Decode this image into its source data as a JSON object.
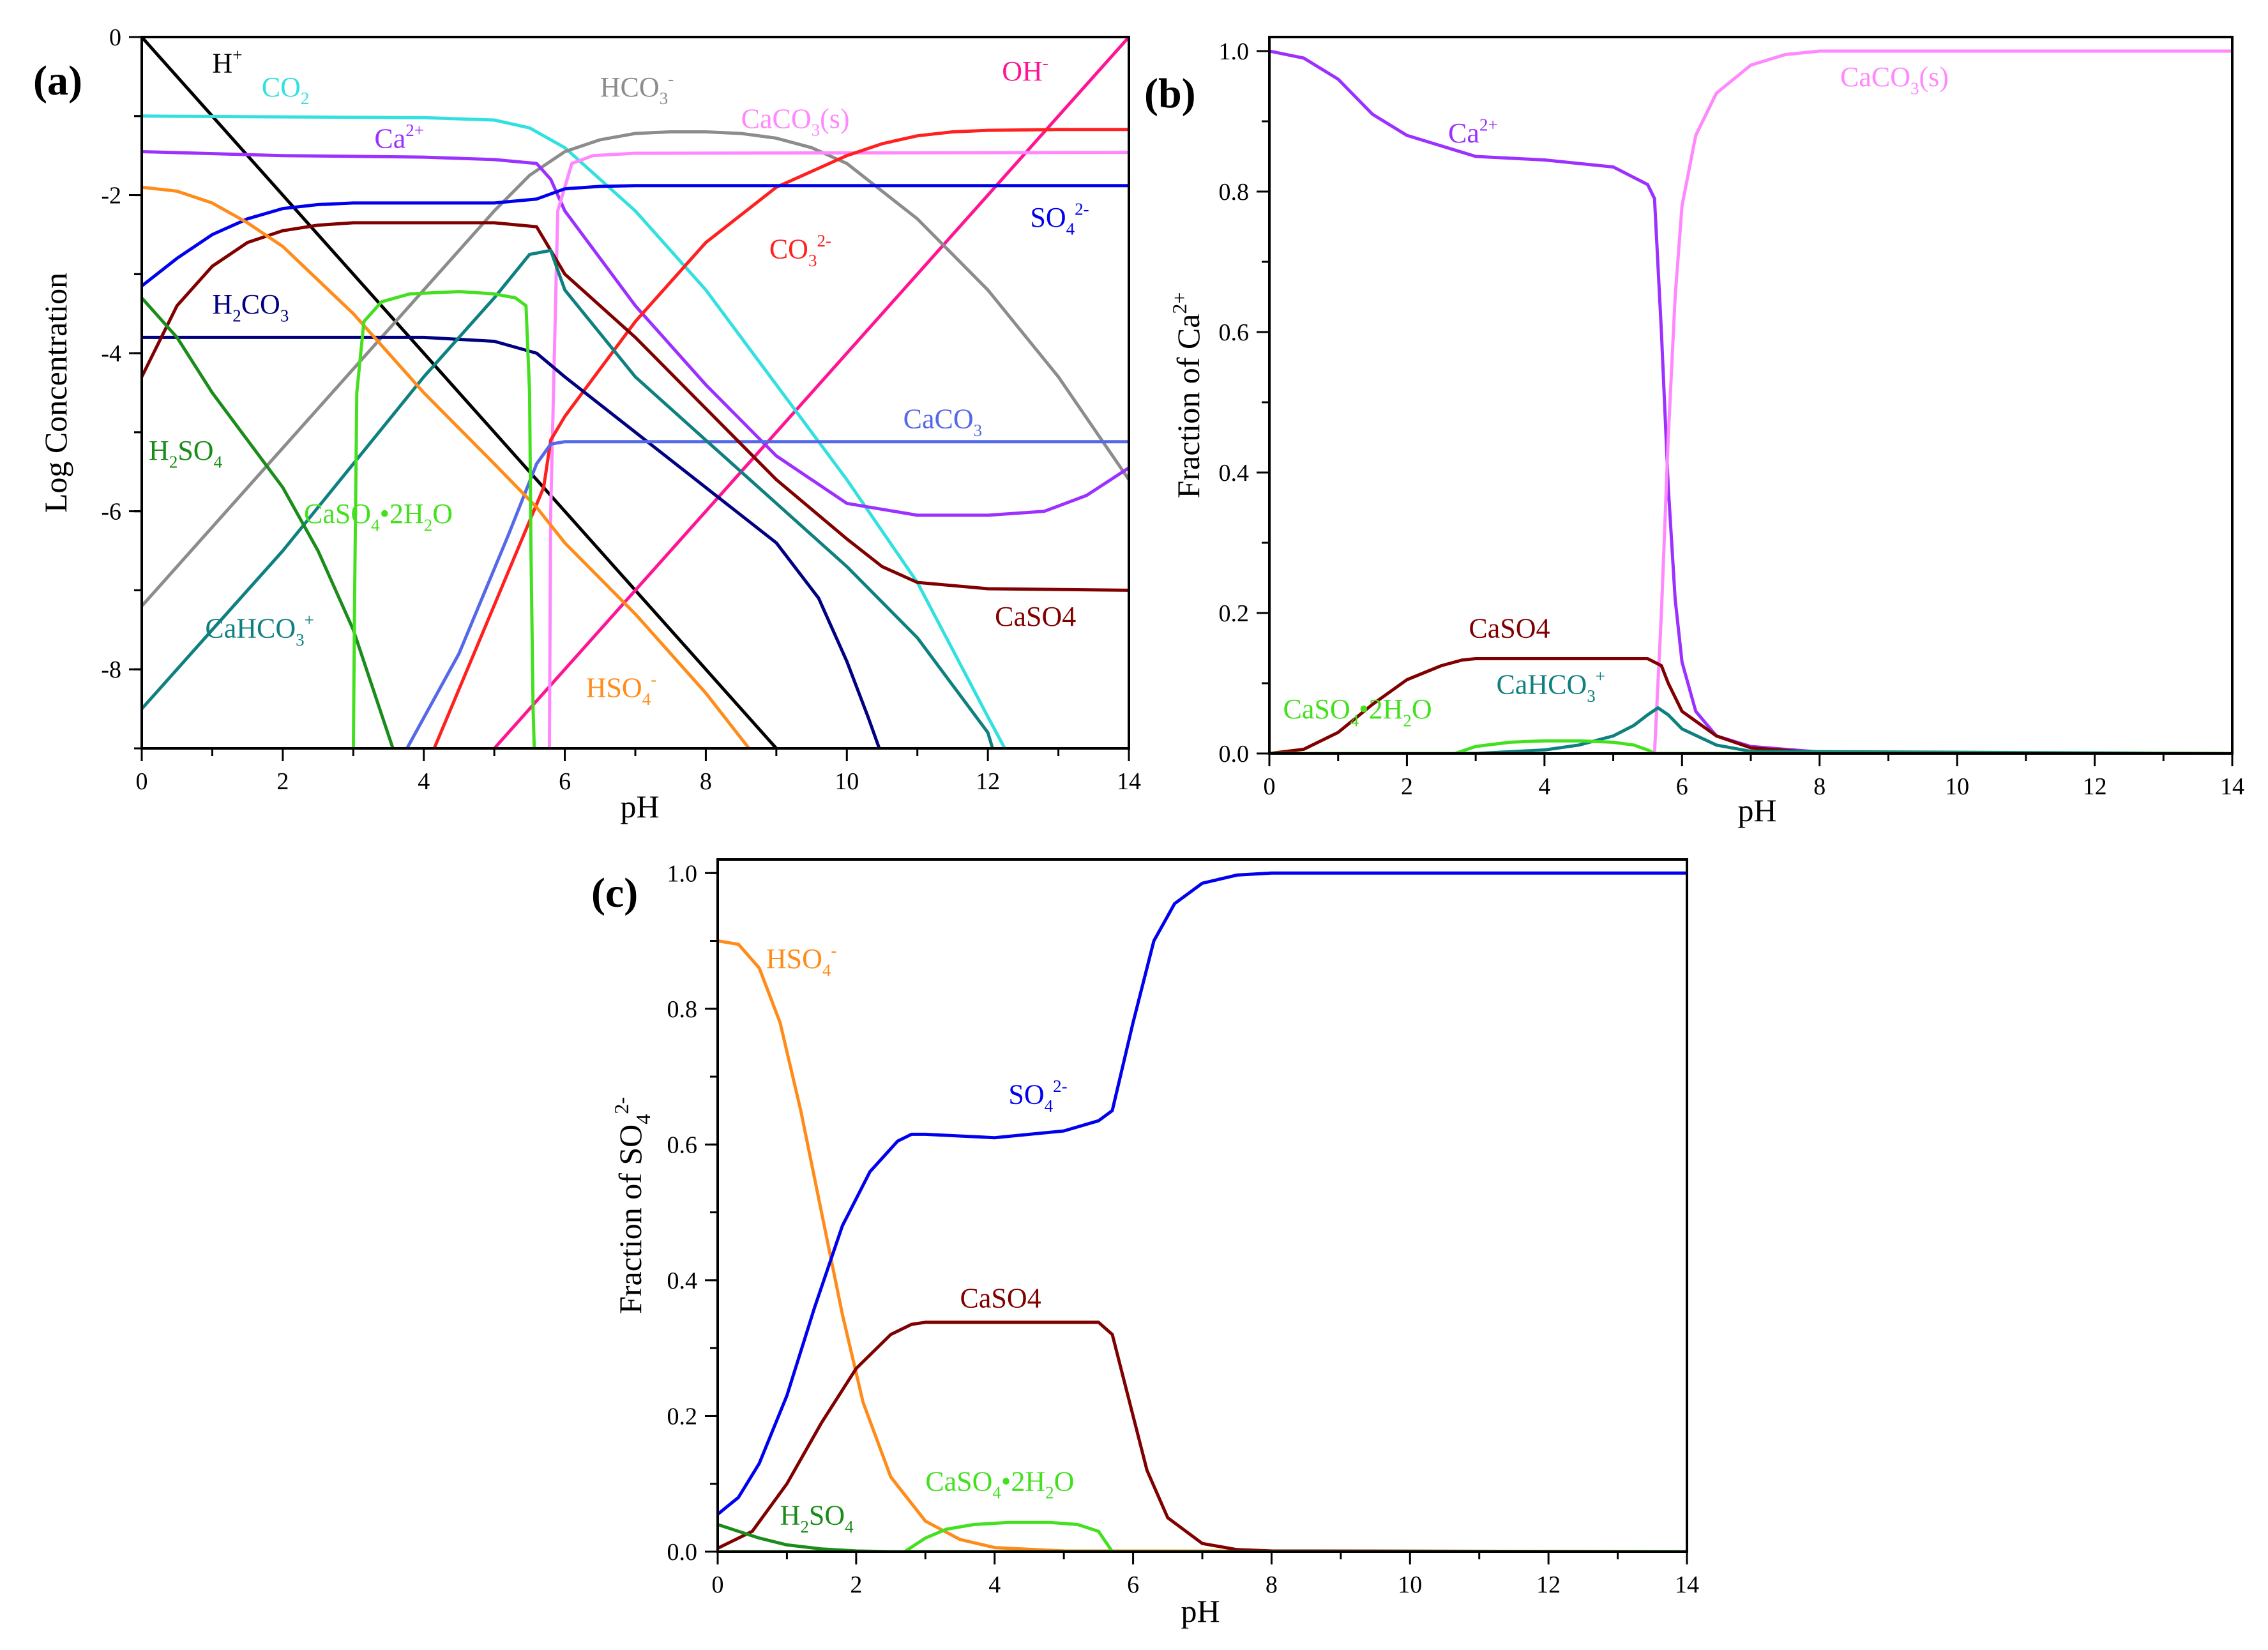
{
  "chart_data": [
    {
      "panel": "(a)",
      "type": "line",
      "xlabel": "pH",
      "ylabel": "Log Concentration",
      "xlim": [
        0,
        14
      ],
      "ylim": [
        -9,
        0
      ],
      "xticks": [
        "0",
        "2",
        "4",
        "6",
        "8",
        "10",
        "12",
        "14"
      ],
      "yticks": [
        "0",
        "-2",
        "-4",
        "-6",
        "-8"
      ],
      "series": [
        {
          "name": "H+",
          "label": "H",
          "sup": "+",
          "color": "#000000",
          "x": [
            0,
            9.1
          ],
          "y": [
            0,
            -9.1
          ]
        },
        {
          "name": "OH-",
          "label": "OH",
          "sup": "-",
          "color": "#ff1493",
          "x": [
            4.9,
            14
          ],
          "y": [
            -9.1,
            0
          ]
        },
        {
          "name": "CO2",
          "label": "CO",
          "sub": "2",
          "color": "#33e0e0",
          "x": [
            0,
            4,
            5,
            5.5,
            6,
            7,
            8,
            9,
            10,
            11,
            12,
            12.3
          ],
          "y": [
            -1.0,
            -1.02,
            -1.05,
            -1.15,
            -1.4,
            -2.2,
            -3.2,
            -4.4,
            -5.6,
            -6.9,
            -8.6,
            -9.1
          ]
        },
        {
          "name": "HCO3-",
          "label": "HCO",
          "sub": "3",
          "sup": "-",
          "color": "#8c8c8c",
          "x": [
            0,
            2,
            4,
            5,
            5.5,
            6,
            6.5,
            7,
            7.5,
            8,
            8.5,
            9,
            9.5,
            10,
            11,
            12,
            13,
            14
          ],
          "y": [
            -7.2,
            -5.2,
            -3.2,
            -2.2,
            -1.75,
            -1.45,
            -1.3,
            -1.22,
            -1.2,
            -1.2,
            -1.22,
            -1.28,
            -1.4,
            -1.6,
            -2.3,
            -3.2,
            -4.3,
            -5.6
          ]
        },
        {
          "name": "Ca2+",
          "label": "Ca",
          "sup": "2+",
          "color": "#9b30ff",
          "x": [
            0,
            2,
            4,
            5,
            5.6,
            5.8,
            6,
            7,
            8,
            9,
            10,
            11,
            12,
            12.8,
            13.4,
            14
          ],
          "y": [
            -1.45,
            -1.5,
            -1.52,
            -1.55,
            -1.6,
            -1.8,
            -2.2,
            -3.4,
            -4.4,
            -5.3,
            -5.9,
            -6.05,
            -6.05,
            -6.0,
            -5.8,
            -5.45
          ]
        },
        {
          "name": "CaCO3(s)",
          "label": "CaCO",
          "sub": "3",
          "tail": "(s)",
          "color": "#ff88ff",
          "x": [
            5.78,
            5.8,
            5.9,
            6.1,
            6.4,
            7,
            14
          ],
          "y": [
            -9.1,
            -6.0,
            -2.2,
            -1.6,
            -1.5,
            -1.47,
            -1.46
          ]
        },
        {
          "name": "CO3 2-",
          "label": "CO",
          "sub": "3",
          "sup": "2-",
          "color": "#ff2020",
          "x": [
            4.1,
            5.7,
            5.8,
            6,
            7,
            8,
            9,
            10,
            10.5,
            11,
            11.5,
            12,
            13,
            14
          ],
          "y": [
            -9.1,
            -5.7,
            -5.1,
            -4.8,
            -3.6,
            -2.6,
            -1.9,
            -1.5,
            -1.35,
            -1.25,
            -1.2,
            -1.18,
            -1.17,
            -1.17
          ]
        },
        {
          "name": "SO4 2-",
          "label": "SO",
          "sub": "4",
          "sup": "2-",
          "color": "#0000ee",
          "x": [
            0,
            0.5,
            1,
            1.5,
            2,
            2.5,
            3,
            5,
            5.6,
            6,
            6.5,
            7,
            14
          ],
          "y": [
            -3.15,
            -2.8,
            -2.5,
            -2.3,
            -2.17,
            -2.12,
            -2.1,
            -2.1,
            -2.05,
            -1.92,
            -1.89,
            -1.88,
            -1.88
          ]
        },
        {
          "name": "H2CO3",
          "label": "H",
          "sub2": "2",
          "label2": "CO",
          "sub": "3",
          "color": "#000080",
          "x": [
            0,
            4,
            5,
            5.6,
            6,
            7,
            8,
            9,
            9.6,
            10,
            10.3,
            10.5
          ],
          "y": [
            -3.8,
            -3.8,
            -3.85,
            -4.0,
            -4.3,
            -5.0,
            -5.7,
            -6.4,
            -7.1,
            -7.9,
            -8.6,
            -9.1
          ]
        },
        {
          "name": "CaCO3",
          "label": "CaCO",
          "sub": "3",
          "color": "#5468e8",
          "x": [
            3.7,
            4.5,
            5.2,
            5.6,
            5.8,
            6,
            14
          ],
          "y": [
            -9.1,
            -7.8,
            -6.3,
            -5.4,
            -5.15,
            -5.12,
            -5.12
          ]
        },
        {
          "name": "CaSO4",
          "label": "CaSO4",
          "color": "#800000",
          "x": [
            0,
            0.5,
            1,
            1.5,
            2,
            2.5,
            3,
            5,
            5.6,
            5.8,
            6,
            7,
            8,
            9,
            10,
            10.5,
            11,
            12,
            14
          ],
          "y": [
            -4.3,
            -3.4,
            -2.9,
            -2.6,
            -2.45,
            -2.38,
            -2.35,
            -2.35,
            -2.4,
            -2.7,
            -3.0,
            -3.8,
            -4.7,
            -5.6,
            -6.35,
            -6.7,
            -6.9,
            -6.98,
            -7.0
          ]
        },
        {
          "name": "CaHCO3+",
          "label": "CaHCO",
          "sub": "3",
          "sup": "+",
          "color": "#0f8080",
          "x": [
            0,
            1,
            2,
            3,
            4,
            5,
            5.5,
            5.8,
            6,
            7,
            8,
            9,
            10,
            11,
            11.5,
            12,
            12.1
          ],
          "y": [
            -8.5,
            -7.5,
            -6.5,
            -5.4,
            -4.3,
            -3.3,
            -2.75,
            -2.7,
            -3.2,
            -4.3,
            -5.1,
            -5.9,
            -6.7,
            -7.6,
            -8.2,
            -8.8,
            -9.1
          ]
        },
        {
          "name": "HSO4-",
          "label": "HSO",
          "sub": "4",
          "sup": "-",
          "color": "#ff8c1a",
          "x": [
            0,
            0.5,
            1,
            1.5,
            2,
            3,
            4,
            5,
            5.6,
            6,
            7,
            8,
            8.7
          ],
          "y": [
            -1.9,
            -1.95,
            -2.1,
            -2.35,
            -2.65,
            -3.5,
            -4.5,
            -5.4,
            -5.95,
            -6.4,
            -7.3,
            -8.3,
            -9.1
          ]
        },
        {
          "name": "H2SO4",
          "label": "H",
          "sub2": "2",
          "label2": "SO",
          "sub": "4",
          "color": "#1a8c1a",
          "x": [
            0,
            0.5,
            1,
            1.5,
            2,
            2.5,
            3,
            3.3,
            3.6
          ],
          "y": [
            -3.3,
            -3.8,
            -4.5,
            -5.1,
            -5.7,
            -6.5,
            -7.5,
            -8.3,
            -9.1
          ]
        },
        {
          "name": "CaSO4•2H2O",
          "label": "CaSO",
          "sub": "4",
          "dot": true,
          "label2": "2H",
          "sub2": "2",
          "tail": "O",
          "color": "#44e020",
          "x": [
            3.0,
            3.02,
            3.05,
            3.15,
            3.4,
            3.8,
            4.5,
            5.0,
            5.3,
            5.45,
            5.5,
            5.52,
            5.55,
            5.57
          ],
          "y": [
            -9.1,
            -7.0,
            -4.5,
            -3.6,
            -3.35,
            -3.25,
            -3.22,
            -3.25,
            -3.3,
            -3.4,
            -4.5,
            -6.5,
            -8.5,
            -9.1
          ]
        }
      ]
    },
    {
      "panel": "(b)",
      "type": "line",
      "xlabel": "pH",
      "ylabel": "Fraction of Ca",
      "ylabel_sup": "2+",
      "xlim": [
        0,
        14
      ],
      "ylim": [
        0,
        1.02
      ],
      "xticks": [
        "0",
        "2",
        "4",
        "6",
        "8",
        "10",
        "12",
        "14"
      ],
      "yticks": [
        "0.0",
        "0.2",
        "0.4",
        "0.6",
        "0.8",
        "1.0"
      ],
      "series": [
        {
          "name": "Ca2+",
          "label": "Ca",
          "sup": "2+",
          "color": "#9b30ff",
          "x": [
            0,
            0.5,
            1,
            1.5,
            2,
            2.5,
            3,
            4,
            5,
            5.5,
            5.6,
            5.7,
            5.8,
            5.9,
            6.0,
            6.2,
            6.5,
            7,
            8,
            9,
            14
          ],
          "y": [
            1.0,
            0.99,
            0.96,
            0.91,
            0.88,
            0.865,
            0.85,
            0.845,
            0.835,
            0.81,
            0.79,
            0.6,
            0.38,
            0.22,
            0.13,
            0.06,
            0.025,
            0.01,
            0.002,
            0.001,
            0.0
          ]
        },
        {
          "name": "CaCO3(s)",
          "label": "CaCO",
          "sub": "3",
          "tail": "(s)",
          "color": "#ff88ff",
          "x": [
            5.6,
            5.7,
            5.8,
            5.9,
            6.0,
            6.2,
            6.5,
            7,
            7.5,
            8,
            14
          ],
          "y": [
            0.0,
            0.2,
            0.45,
            0.65,
            0.78,
            0.88,
            0.94,
            0.98,
            0.995,
            1.0,
            1.0
          ]
        },
        {
          "name": "CaSO4",
          "label": "CaSO4",
          "color": "#800000",
          "x": [
            0,
            0.5,
            1,
            1.5,
            2,
            2.5,
            2.8,
            3,
            5,
            5.5,
            5.7,
            5.8,
            6,
            6.5,
            7,
            8,
            14
          ],
          "y": [
            0.0,
            0.006,
            0.03,
            0.07,
            0.105,
            0.125,
            0.133,
            0.135,
            0.135,
            0.135,
            0.125,
            0.1,
            0.06,
            0.025,
            0.008,
            0.001,
            0.0
          ]
        },
        {
          "name": "CaHCO3+",
          "label": "CaHCO",
          "sub": "3",
          "sup": "+",
          "color": "#0f8080",
          "x": [
            0,
            3,
            4,
            4.5,
            5,
            5.3,
            5.5,
            5.65,
            5.8,
            6,
            6.5,
            7,
            14
          ],
          "y": [
            0.0,
            0.0,
            0.005,
            0.012,
            0.025,
            0.04,
            0.055,
            0.065,
            0.055,
            0.035,
            0.012,
            0.003,
            0.0
          ]
        },
        {
          "name": "CaSO4•2H2O",
          "label": "CaSO",
          "sub": "4",
          "dot": true,
          "label2": "2H",
          "sub2": "2",
          "tail": "O",
          "color": "#44e020",
          "x": [
            0,
            2.7,
            3.0,
            3.5,
            4,
            4.5,
            5,
            5.3,
            5.5,
            5.6,
            14
          ],
          "y": [
            0.0,
            0.0,
            0.01,
            0.016,
            0.018,
            0.018,
            0.016,
            0.012,
            0.005,
            0.0,
            0.0
          ]
        }
      ]
    },
    {
      "panel": "(c)",
      "type": "line",
      "xlabel": "pH",
      "ylabel": "Fraction of SO",
      "ylabel_sub": "4",
      "ylabel_sup": "2-",
      "xlim": [
        0,
        14
      ],
      "ylim": [
        0,
        1.02
      ],
      "xticks": [
        "0",
        "2",
        "4",
        "6",
        "8",
        "10",
        "12",
        "14"
      ],
      "yticks": [
        "0.0",
        "0.2",
        "0.4",
        "0.6",
        "0.8",
        "1.0"
      ],
      "series": [
        {
          "name": "HSO4-",
          "label": "HSO",
          "sub": "4",
          "sup": "-",
          "color": "#ff8c1a",
          "x": [
            0,
            0.3,
            0.6,
            0.9,
            1.2,
            1.5,
            1.8,
            2.1,
            2.5,
            3,
            3.5,
            4,
            5,
            14
          ],
          "y": [
            0.9,
            0.895,
            0.86,
            0.78,
            0.65,
            0.5,
            0.35,
            0.22,
            0.11,
            0.045,
            0.018,
            0.006,
            0.001,
            0.0
          ]
        },
        {
          "name": "SO4 2-",
          "label": "SO",
          "sub": "4",
          "sup": "2-",
          "color": "#0000ee",
          "x": [
            0,
            0.3,
            0.6,
            1,
            1.4,
            1.8,
            2.2,
            2.6,
            2.8,
            3,
            4,
            5,
            5.5,
            5.7,
            6,
            6.3,
            6.6,
            7,
            7.5,
            8,
            10,
            14
          ],
          "y": [
            0.055,
            0.08,
            0.13,
            0.23,
            0.36,
            0.48,
            0.56,
            0.605,
            0.615,
            0.615,
            0.61,
            0.62,
            0.635,
            0.65,
            0.78,
            0.9,
            0.955,
            0.985,
            0.997,
            1.0,
            1.0,
            1.0
          ]
        },
        {
          "name": "CaSO4",
          "label": "CaSO4",
          "color": "#800000",
          "x": [
            0,
            0.5,
            1,
            1.5,
            2,
            2.5,
            2.8,
            3,
            5,
            5.5,
            5.7,
            5.9,
            6.2,
            6.5,
            7,
            7.5,
            8,
            14
          ],
          "y": [
            0.005,
            0.03,
            0.1,
            0.19,
            0.27,
            0.32,
            0.335,
            0.338,
            0.338,
            0.338,
            0.32,
            0.24,
            0.12,
            0.05,
            0.012,
            0.003,
            0.001,
            0.0
          ]
        },
        {
          "name": "H2SO4",
          "label": "H",
          "sub2": "2",
          "label2": "SO",
          "sub": "4",
          "color": "#1a8c1a",
          "x": [
            0,
            0.3,
            0.6,
            1,
            1.5,
            2,
            2.5,
            3,
            14
          ],
          "y": [
            0.04,
            0.03,
            0.02,
            0.01,
            0.004,
            0.001,
            0.0,
            0.0,
            0.0
          ]
        },
        {
          "name": "CaSO4•2H2O",
          "label": "CaSO",
          "sub": "4",
          "dot": true,
          "label2": "2H",
          "sub2": "2",
          "tail": "O",
          "color": "#44e020",
          "x": [
            0,
            2.7,
            3.0,
            3.3,
            3.7,
            4.2,
            4.8,
            5.2,
            5.5,
            5.7,
            14
          ],
          "y": [
            0.0,
            0.0,
            0.02,
            0.033,
            0.04,
            0.043,
            0.043,
            0.04,
            0.03,
            0.0,
            0.0
          ]
        }
      ]
    }
  ]
}
